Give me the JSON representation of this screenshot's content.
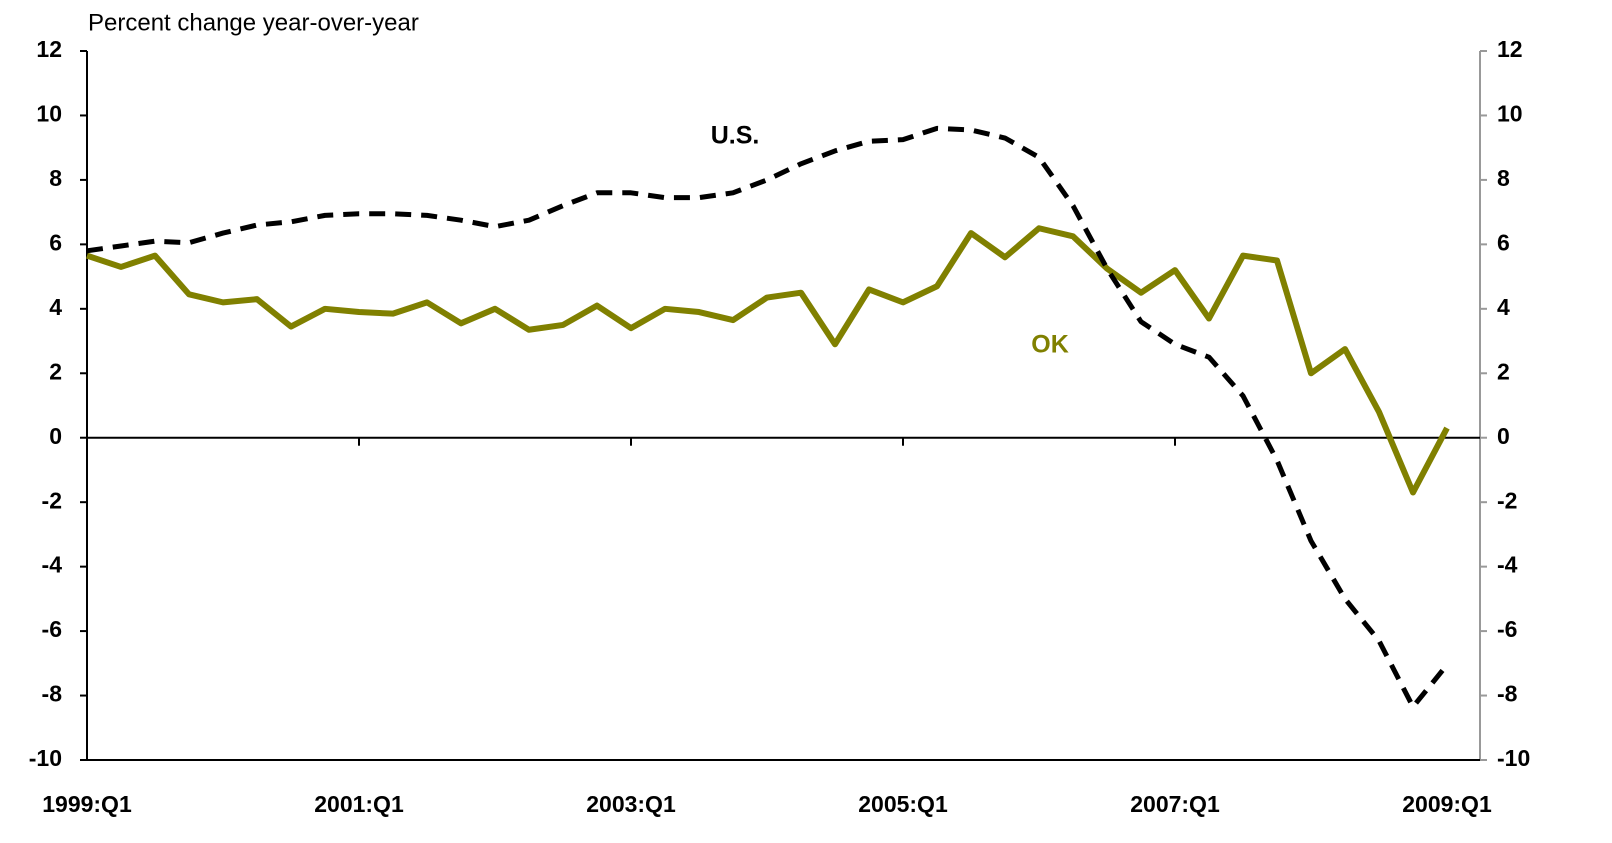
{
  "chart_data": {
    "type": "line",
    "y_axis_label": "Percent change year-over-year",
    "categories": [
      "1999:Q1",
      null,
      null,
      null,
      null,
      null,
      null,
      null,
      "2001:Q1",
      null,
      null,
      null,
      null,
      null,
      null,
      null,
      "2003:Q1",
      null,
      null,
      null,
      null,
      null,
      null,
      null,
      "2005:Q1",
      null,
      null,
      null,
      null,
      null,
      null,
      null,
      "2007:Q1",
      null,
      null,
      null,
      null,
      null,
      null,
      null,
      "2009:Q1"
    ],
    "series": [
      {
        "name": "OK",
        "color": "#808000",
        "dash": false,
        "values": [
          5.65,
          5.3,
          5.65,
          4.45,
          4.2,
          4.3,
          3.45,
          4.0,
          3.9,
          3.85,
          4.2,
          3.55,
          4.0,
          3.35,
          3.5,
          4.1,
          3.4,
          4.0,
          3.9,
          3.65,
          4.35,
          4.5,
          2.9,
          4.6,
          4.2,
          4.7,
          6.35,
          5.6,
          6.5,
          6.25,
          5.25,
          4.5,
          5.2,
          3.7,
          5.65,
          5.5,
          2.0,
          2.75,
          0.8,
          -1.7,
          0.3
        ]
      },
      {
        "name": "U.S.",
        "color": "#000000",
        "dash": true,
        "values": [
          5.8,
          5.95,
          6.1,
          6.05,
          6.35,
          6.6,
          6.7,
          6.9,
          6.95,
          6.95,
          6.9,
          6.75,
          6.55,
          6.75,
          7.2,
          7.6,
          7.6,
          7.45,
          7.45,
          7.6,
          8.0,
          8.5,
          8.9,
          9.2,
          9.25,
          9.6,
          9.55,
          9.3,
          8.7,
          7.2,
          5.25,
          3.6,
          2.9,
          2.5,
          1.3,
          -0.7,
          -3.2,
          -5.0,
          -6.3,
          -8.35,
          -7.05
        ]
      }
    ],
    "ylim": [
      -10,
      12
    ],
    "yticks": [
      -10,
      -8,
      -6,
      -4,
      -2,
      0,
      2,
      4,
      6,
      8,
      10,
      12
    ],
    "y2lim": [
      -10,
      12
    ],
    "y2ticks": [
      -10,
      -8,
      -6,
      -4,
      -2,
      0,
      2,
      4,
      6,
      8,
      10,
      12
    ],
    "grid": false
  }
}
